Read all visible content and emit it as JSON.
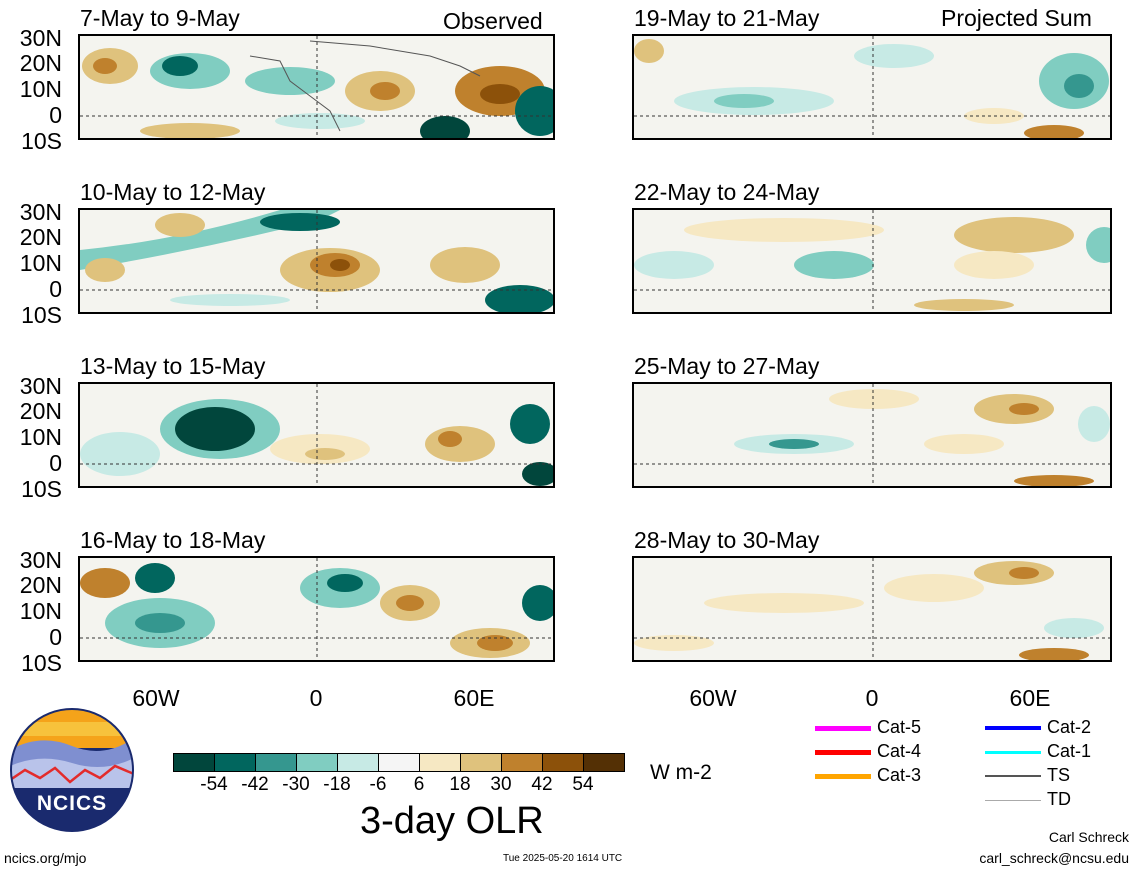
{
  "observed_label": "Observed",
  "projected_label": "Projected Sum",
  "observed_panels": [
    {
      "title": "7-May to 9-May"
    },
    {
      "title": "10-May to 12-May"
    },
    {
      "title": "13-May to 15-May"
    },
    {
      "title": "16-May to 18-May"
    }
  ],
  "projected_panels": [
    {
      "title": "19-May to 21-May"
    },
    {
      "title": "22-May to 24-May"
    },
    {
      "title": "25-May to 27-May"
    },
    {
      "title": "28-May to 30-May"
    }
  ],
  "lat_labels": [
    "30N",
    "20N",
    "10N",
    "0",
    "10S"
  ],
  "lon_labels": [
    "60W",
    "0",
    "60E"
  ],
  "colorbar": {
    "title": "3-day OLR",
    "units": "W m-2",
    "ticks": [
      "-54",
      "-42",
      "-30",
      "-18",
      "-6",
      "6",
      "18",
      "30",
      "42",
      "54"
    ],
    "colors": [
      "#01463c",
      "#01665e",
      "#35978f",
      "#80cdc1",
      "#c7eae5",
      "#f5f5f5",
      "#f6e8c3",
      "#dfc27d",
      "#bf812d",
      "#8c510a",
      "#543005"
    ]
  },
  "storm_legend": [
    {
      "label": "Cat-5",
      "color": "#ff00ff"
    },
    {
      "label": "Cat-4",
      "color": "#ff0000"
    },
    {
      "label": "Cat-3",
      "color": "#ffa500"
    },
    {
      "label": "Cat-2",
      "color": "#0000ff"
    },
    {
      "label": "Cat-1",
      "color": "#00ffff"
    },
    {
      "label": "TS",
      "color": "#555555"
    },
    {
      "label": "TD",
      "color": "#aaaaaa"
    }
  ],
  "footer": {
    "logo_text": "NCICS",
    "website": "ncics.org/mjo",
    "timestamp": "Tue 2025-05-20 1614 UTC",
    "author": "Carl Schreck",
    "email": "carl_schreck@ncsu.edu"
  }
}
